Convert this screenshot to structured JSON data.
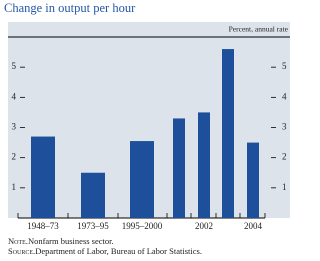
{
  "chart_data": {
    "type": "bar",
    "title": "Change in output per hour",
    "unit_label": "Percent, annual rate",
    "categories": [
      "1948–73",
      "1973–95",
      "1995–2000",
      null,
      "2002",
      null,
      "2004"
    ],
    "values": [
      2.7,
      1.5,
      2.55,
      3.3,
      3.5,
      5.6,
      2.5
    ],
    "color": "#1d4f9a",
    "background": "#dde3ea",
    "ylim": [
      0,
      6
    ],
    "yticks": [
      1,
      2,
      3,
      4,
      5
    ],
    "grid": false,
    "notes": [
      {
        "label": "Note.",
        "text": "Nonfarm business sector."
      },
      {
        "label": "Source.",
        "text": "Department of Labor, Bureau of Labor Statistics."
      }
    ]
  }
}
